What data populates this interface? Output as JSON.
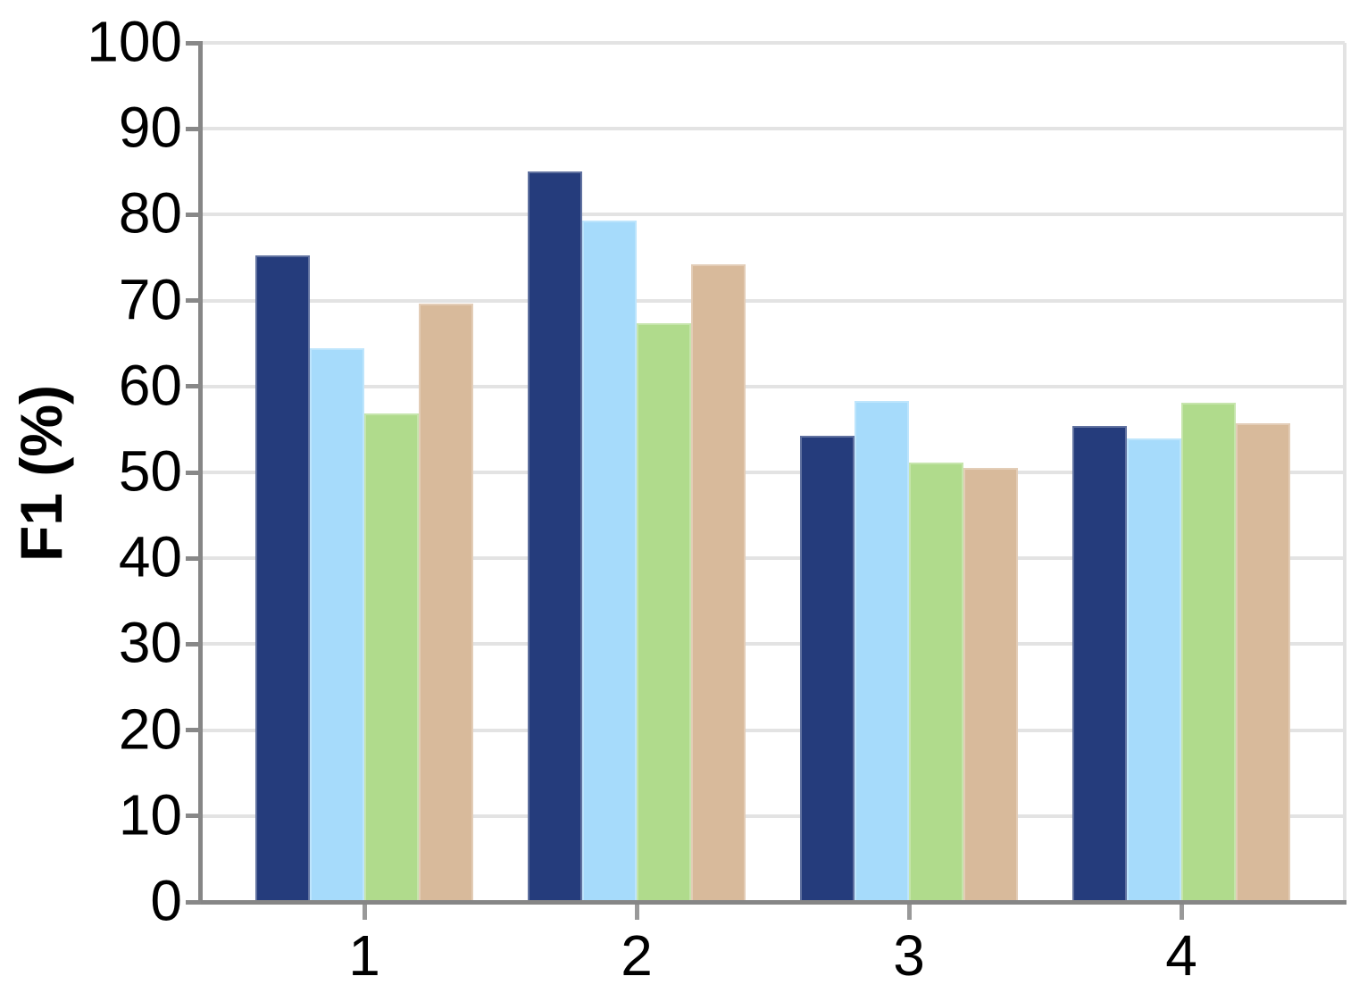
{
  "chart_data": {
    "type": "bar",
    "categories": [
      "1",
      "2",
      "3",
      "4"
    ],
    "series": [
      {
        "name": "series-navy",
        "color": "#253c7c",
        "values": [
          75.3,
          85.0,
          54.3,
          55.4
        ]
      },
      {
        "name": "series-lightblue",
        "color": "#a6dbfb",
        "values": [
          64.4,
          79.3,
          58.3,
          54.0
        ]
      },
      {
        "name": "series-green",
        "color": "#b0db8c",
        "values": [
          56.9,
          67.4,
          51.1,
          58.1
        ]
      },
      {
        "name": "series-tan",
        "color": "#d8ba9b",
        "values": [
          69.6,
          74.2,
          50.5,
          55.7
        ]
      }
    ],
    "title": "",
    "xlabel": "",
    "ylabel": "F1 (%)",
    "ylim": [
      0,
      100
    ],
    "yticks": [
      0,
      10,
      20,
      30,
      40,
      50,
      60,
      70,
      80,
      90,
      100
    ],
    "grid": true,
    "legend": "none",
    "grid_color": "#e3e3e3",
    "axis_color": "#868686"
  }
}
